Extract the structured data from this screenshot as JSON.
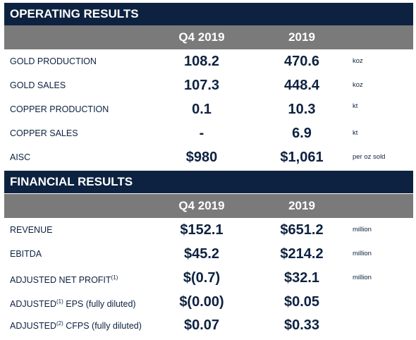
{
  "operating": {
    "title": "OPERATING RESULTS",
    "col1": "Q4 2019",
    "col2": "2019",
    "rows": [
      {
        "label": "GOLD PRODUCTION",
        "q4": "108.2",
        "year": "470.6",
        "unit": "koz"
      },
      {
        "label": "GOLD SALES",
        "q4": "107.3",
        "year": "448.4",
        "unit": "koz"
      },
      {
        "label": "COPPER PRODUCTION",
        "q4": "0.1",
        "year": "10.3",
        "unit": "kt"
      },
      {
        "label": "COPPER SALES",
        "q4": "-",
        "year": "6.9",
        "unit": "kt"
      },
      {
        "label": "AISC",
        "q4": "$980",
        "year": "$1,061",
        "unit": "per oz sold"
      }
    ]
  },
  "financial": {
    "title": "FINANCIAL RESULTS",
    "col1": "Q4 2019",
    "col2": "2019",
    "rows": [
      {
        "label": "REVENUE",
        "q4": "$152.1",
        "year": "$651.2",
        "unit": "million"
      },
      {
        "label": "EBITDA",
        "q4": "$45.2",
        "year": "$214.2",
        "unit": "million"
      },
      {
        "label": "ADJUSTED NET PROFIT",
        "label_sup": "(1)",
        "label_rest": "",
        "q4": "$(0.7)",
        "year": "$32.1",
        "unit": "million"
      },
      {
        "label": "ADJUSTED",
        "label_sup": "(1)",
        "label_rest": " EPS (fully diluted)",
        "q4": "$(0.00)",
        "year": "$0.05",
        "unit": ""
      },
      {
        "label": "ADJUSTED",
        "label_sup": "(2)",
        "label_rest": " CFPS (fully diluted)",
        "q4": "$0.07",
        "year": "$0.33",
        "unit": ""
      }
    ]
  }
}
